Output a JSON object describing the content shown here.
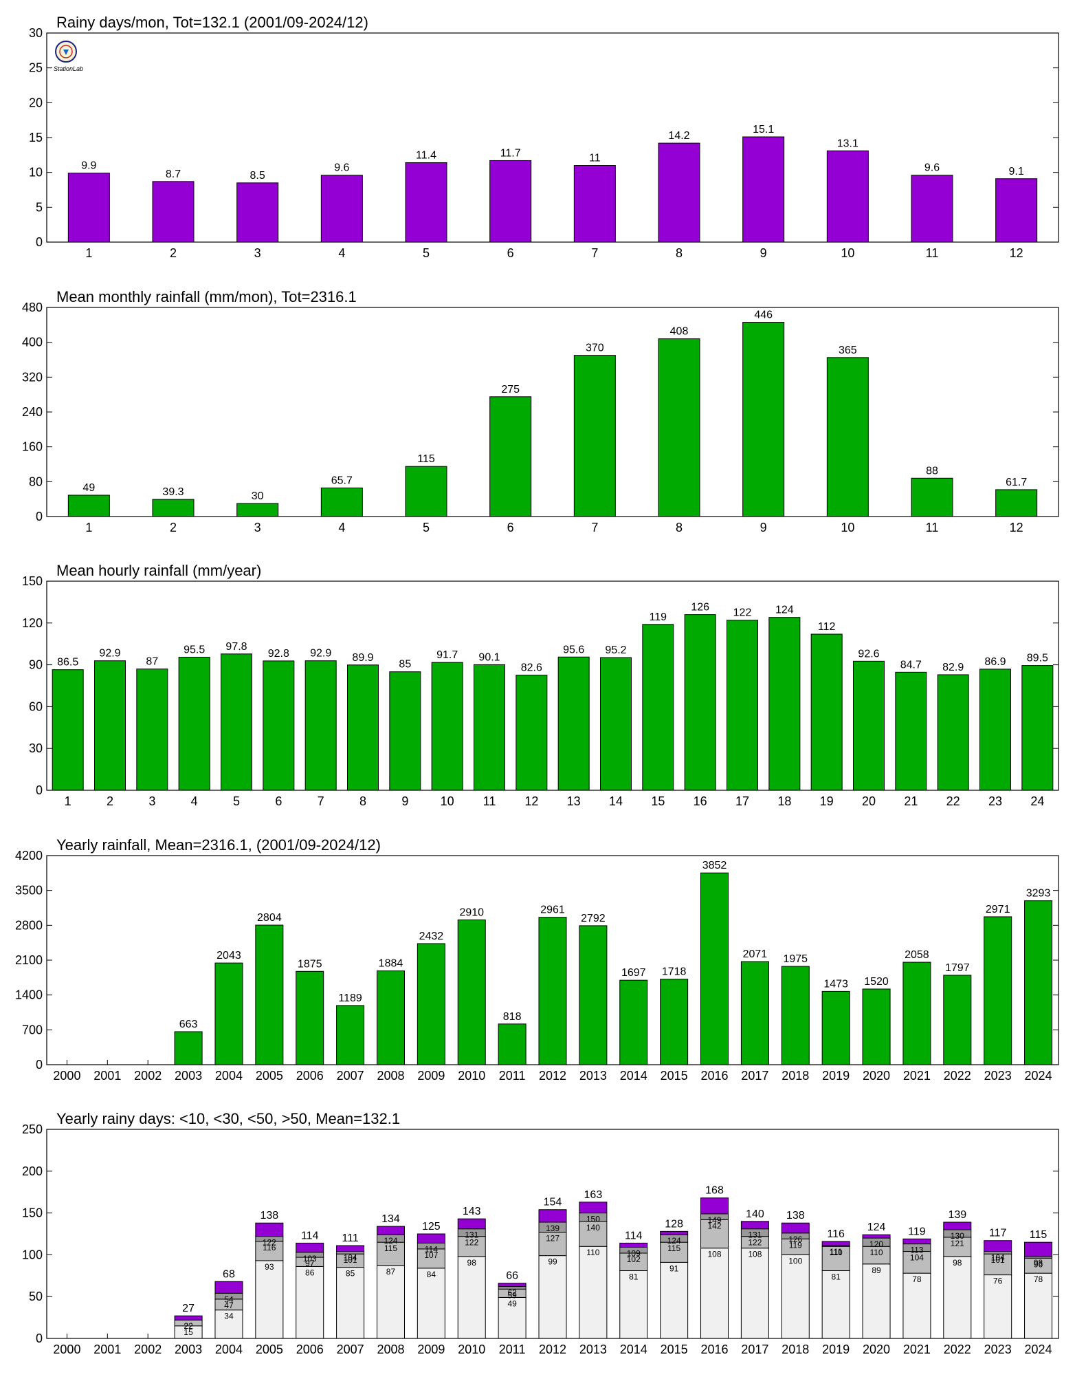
{
  "logo": {
    "text": "StationLab"
  },
  "chart_data": [
    {
      "type": "bar",
      "title": "Rainy days/mon, Tot=132.1 (2001/09-2024/12)",
      "categories": [
        "1",
        "2",
        "3",
        "4",
        "5",
        "6",
        "7",
        "8",
        "9",
        "10",
        "11",
        "12"
      ],
      "values": [
        9.9,
        8.7,
        8.5,
        9.6,
        11.4,
        11.7,
        11,
        14.2,
        15.1,
        13.1,
        9.6,
        9.1
      ],
      "labels": [
        "9.9",
        "8.7",
        "8.5",
        "9.6",
        "11.4",
        "11.7",
        "11",
        "14.2",
        "15.1",
        "13.1",
        "9.6",
        "9.1"
      ],
      "ylim": [
        0,
        30
      ],
      "yticks": [
        0,
        5,
        10,
        15,
        20,
        25,
        30
      ],
      "color": "#9400d3"
    },
    {
      "type": "bar",
      "title": "Mean monthly rainfall (mm/mon), Tot=2316.1",
      "categories": [
        "1",
        "2",
        "3",
        "4",
        "5",
        "6",
        "7",
        "8",
        "9",
        "10",
        "11",
        "12"
      ],
      "values": [
        49,
        39.3,
        30,
        65.7,
        115,
        275,
        370,
        408,
        446,
        365,
        88,
        61.7
      ],
      "labels": [
        "49",
        "39.3",
        "30",
        "65.7",
        "115",
        "275",
        "370",
        "408",
        "446",
        "365",
        "88",
        "61.7"
      ],
      "ylim": [
        0,
        480
      ],
      "yticks": [
        0,
        80,
        160,
        240,
        320,
        400,
        480
      ],
      "color": "#00aa00"
    },
    {
      "type": "bar",
      "title": "Mean hourly rainfall (mm/year)",
      "categories": [
        "1",
        "2",
        "3",
        "4",
        "5",
        "6",
        "7",
        "8",
        "9",
        "10",
        "11",
        "12",
        "13",
        "14",
        "15",
        "16",
        "17",
        "18",
        "19",
        "20",
        "21",
        "22",
        "23",
        "24"
      ],
      "values": [
        86.5,
        92.9,
        87,
        95.5,
        97.8,
        92.8,
        92.9,
        89.9,
        85,
        91.7,
        90.1,
        82.6,
        95.6,
        95.2,
        119,
        126,
        122,
        124,
        112,
        92.6,
        84.7,
        82.9,
        86.9,
        89.5
      ],
      "labels": [
        "86.5",
        "92.9",
        "87",
        "95.5",
        "97.8",
        "92.8",
        "92.9",
        "89.9",
        "85",
        "91.7",
        "90.1",
        "82.6",
        "95.6",
        "95.2",
        "119",
        "126",
        "122",
        "124",
        "112",
        "92.6",
        "84.7",
        "82.9",
        "86.9",
        "89.5"
      ],
      "ylim": [
        0,
        150
      ],
      "yticks": [
        0,
        30,
        60,
        90,
        120,
        150
      ],
      "color": "#00aa00"
    },
    {
      "type": "bar",
      "title": "Yearly rainfall, Mean=2316.1, (2001/09-2024/12)",
      "categories": [
        "2000",
        "2001",
        "2002",
        "2003",
        "2004",
        "2005",
        "2006",
        "2007",
        "2008",
        "2009",
        "2010",
        "2011",
        "2012",
        "2013",
        "2014",
        "2015",
        "2016",
        "2017",
        "2018",
        "2019",
        "2020",
        "2021",
        "2022",
        "2023",
        "2024"
      ],
      "values": [
        null,
        null,
        null,
        663,
        2043,
        2804,
        1875,
        1189,
        1884,
        2432,
        2910,
        818,
        2961,
        2792,
        1697,
        1718,
        3852,
        2071,
        1975,
        1473,
        1520,
        2058,
        1797,
        2971,
        3293
      ],
      "labels": [
        "",
        "",
        "",
        "663",
        "2043",
        "2804",
        "1875",
        "1189",
        "1884",
        "2432",
        "2910",
        "818",
        "2961",
        "2792",
        "1697",
        "1718",
        "3852",
        "2071",
        "1975",
        "1473",
        "1520",
        "2058",
        "1797",
        "2971",
        "3293"
      ],
      "ylim": [
        0,
        4200
      ],
      "yticks": [
        0,
        700,
        1400,
        2100,
        2800,
        3500,
        4200
      ],
      "color": "#00aa00"
    },
    {
      "type": "bar",
      "stacked": true,
      "title": "Yearly rainy days: <10, <30, <50, >50, Mean=132.1",
      "categories": [
        "2000",
        "2001",
        "2002",
        "2003",
        "2004",
        "2005",
        "2006",
        "2007",
        "2008",
        "2009",
        "2010",
        "2011",
        "2012",
        "2013",
        "2014",
        "2015",
        "2016",
        "2017",
        "2018",
        "2019",
        "2020",
        "2021",
        "2022",
        "2023",
        "2024"
      ],
      "cumulative": {
        "lt10": [
          null,
          null,
          null,
          15,
          34,
          93,
          86,
          85,
          87,
          84,
          98,
          49,
          99,
          110,
          81,
          91,
          108,
          108,
          100,
          81,
          89,
          78,
          98,
          76,
          78
        ],
        "lt30": [
          null,
          null,
          null,
          22,
          47,
          116,
          97,
          101,
          115,
          107,
          122,
          59,
          127,
          140,
          102,
          115,
          142,
          122,
          119,
          110,
          110,
          104,
          121,
          101,
          96
        ],
        "lt50": [
          null,
          null,
          null,
          22,
          54,
          122,
          103,
          104,
          124,
          114,
          131,
          62,
          139,
          150,
          109,
          124,
          149,
          131,
          126,
          111,
          120,
          113,
          130,
          104,
          98
        ],
        "total": [
          null,
          null,
          null,
          27,
          68,
          138,
          114,
          111,
          134,
          125,
          143,
          66,
          154,
          163,
          114,
          128,
          168,
          140,
          138,
          116,
          124,
          119,
          139,
          117,
          115
        ]
      },
      "segment_labels": {
        "lt10": [
          "",
          "",
          "",
          "15",
          "34",
          "93",
          "86",
          "85",
          "87",
          "84",
          "98",
          "49",
          "99",
          "110",
          "81",
          "91",
          "108",
          "108",
          "100",
          "81",
          "89",
          "78",
          "98",
          "76",
          "78"
        ],
        "lt30": [
          "",
          "",
          "",
          "22",
          "47",
          "116",
          "97",
          "101",
          "115",
          "107",
          "122",
          "59",
          "127",
          "140",
          "102",
          "115",
          "142",
          "122",
          "119",
          "110",
          "110",
          "104",
          "121",
          "101",
          "96"
        ],
        "lt50": [
          "",
          "",
          "",
          "22",
          "54",
          "122",
          "103",
          "104",
          "124",
          "114",
          "131",
          "62",
          "139",
          "150",
          "109",
          "124",
          "149",
          "131",
          "126",
          "111",
          "120",
          "113",
          "130",
          "104",
          "98"
        ]
      },
      "total_labels": [
        "",
        "",
        "",
        "27",
        "68",
        "138",
        "114",
        "111",
        "134",
        "125",
        "143",
        "66",
        "154",
        "163",
        "114",
        "128",
        "168",
        "140",
        "138",
        "116",
        "124",
        "119",
        "139",
        "117",
        "115"
      ],
      "ylim": [
        0,
        250
      ],
      "yticks": [
        0,
        50,
        100,
        150,
        200,
        250
      ],
      "colors": {
        "lt10": "#f0f0f0",
        "lt30": "#bdbdbd",
        "lt50": "#999999",
        "gt50": "#9400d3"
      }
    }
  ]
}
